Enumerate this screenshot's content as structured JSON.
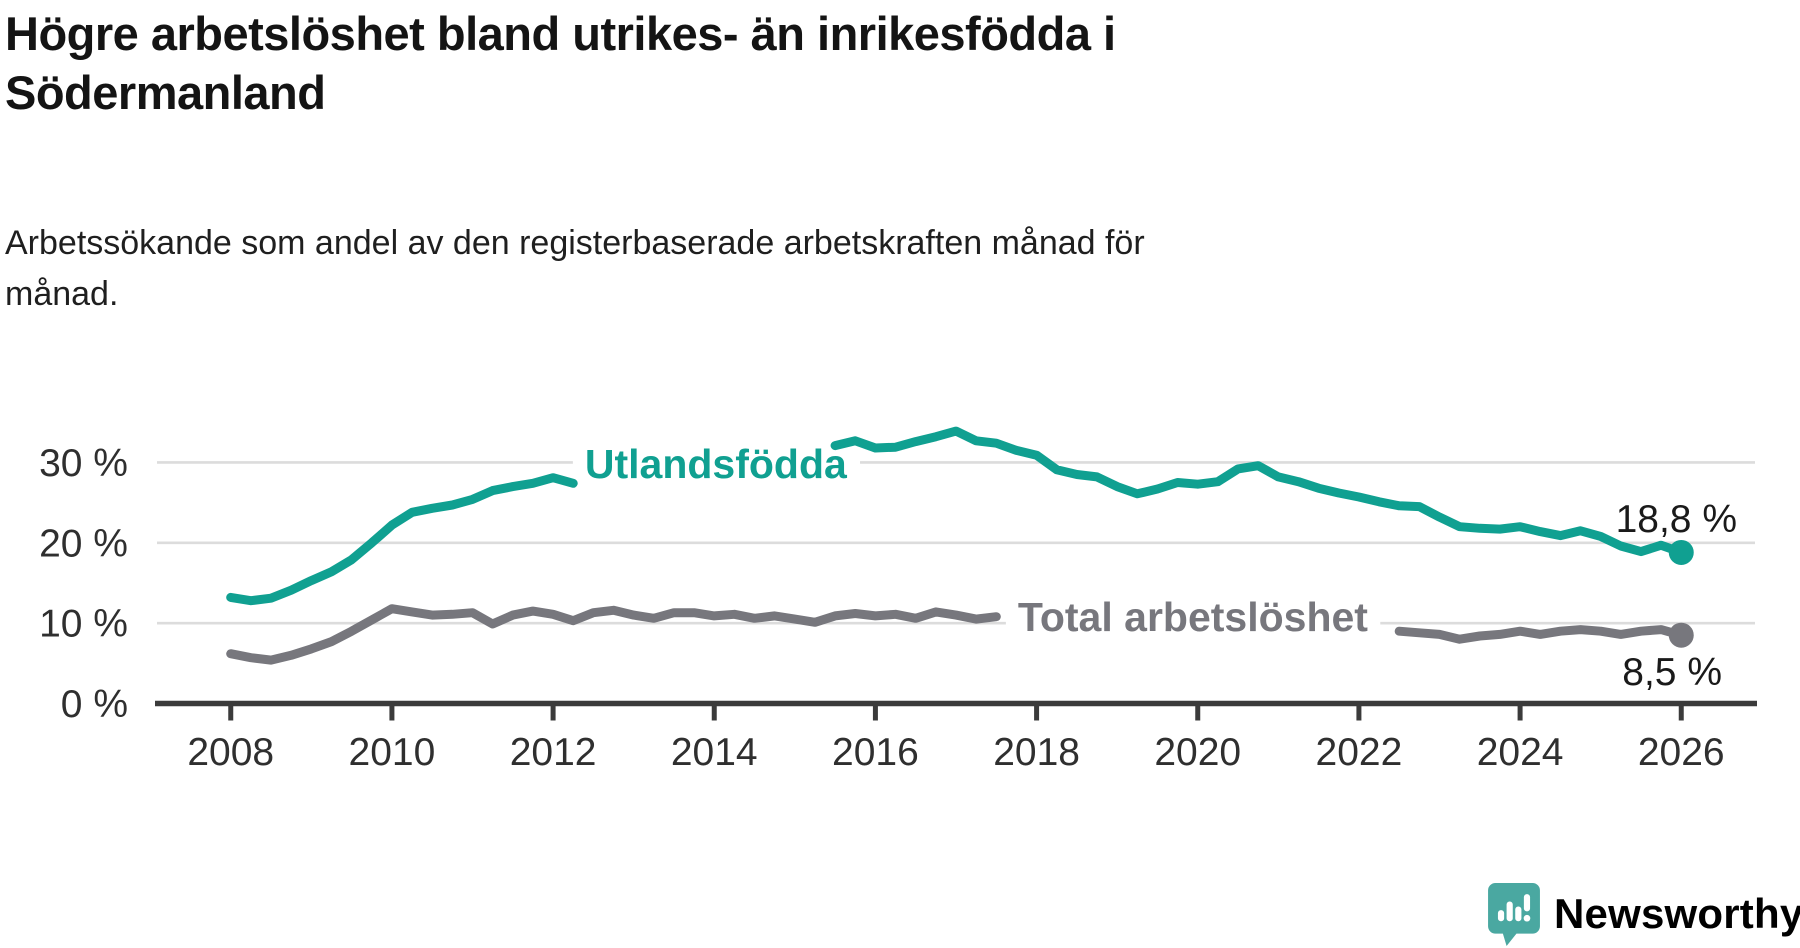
{
  "header": {
    "title_lines": {
      "0": "Högre arbetslöshet bland utrikes- än inrikesfödda i",
      "1": "Södermanland"
    },
    "subtitle_lines": {
      "0": "Arbetssökande som andel av den registerbaserade arbetskraften månad för",
      "1": "månad."
    }
  },
  "chart_data": {
    "type": "line",
    "x_unit": "year",
    "y_unit": "percent",
    "grid": true,
    "legend": "inline-labels-on-lines",
    "xlim": [
      2007.06,
      2026.94
    ],
    "ylim": [
      0,
      37.4
    ],
    "x_ticks": [
      2008,
      2010,
      2012,
      2014,
      2016,
      2018,
      2020,
      2022,
      2024,
      2026
    ],
    "y_ticks": [
      0,
      10,
      20,
      30
    ],
    "y_tick_suffix": " %",
    "x": [
      2008.0,
      2008.25,
      2008.5,
      2008.75,
      2009.0,
      2009.25,
      2009.5,
      2009.75,
      2010.0,
      2010.25,
      2010.5,
      2010.75,
      2011.0,
      2011.25,
      2011.5,
      2011.75,
      2012.0,
      2012.25,
      2012.5,
      2012.75,
      2013.0,
      2013.25,
      2013.5,
      2013.75,
      2014.0,
      2014.25,
      2014.5,
      2014.75,
      2015.0,
      2015.25,
      2015.5,
      2015.75,
      2016.0,
      2016.25,
      2016.5,
      2016.75,
      2017.0,
      2017.25,
      2017.5,
      2017.75,
      2018.0,
      2018.25,
      2018.5,
      2018.75,
      2019.0,
      2019.25,
      2019.5,
      2019.75,
      2020.0,
      2020.25,
      2020.5,
      2020.75,
      2021.0,
      2021.25,
      2021.5,
      2021.75,
      2022.0,
      2022.25,
      2022.5,
      2022.75,
      2023.0,
      2023.25,
      2023.5,
      2023.75,
      2024.0,
      2024.25,
      2024.5,
      2024.75,
      2025.0,
      2025.25,
      2025.5,
      2025.75,
      2026.0
    ],
    "series": [
      {
        "name": "Utlandsfödda",
        "color": "#10a091",
        "inline_label": {
          "x": 2014.02,
          "y": 29.8
        },
        "end_label": "18,8 %",
        "end_value": 18.8,
        "values": [
          13.2,
          12.8,
          13.1,
          14.1,
          15.3,
          16.4,
          17.9,
          20.0,
          22.2,
          23.8,
          24.3,
          24.7,
          25.4,
          26.5,
          27.0,
          27.4,
          28.1,
          27.4,
          null,
          null,
          null,
          null,
          null,
          null,
          null,
          null,
          null,
          null,
          null,
          null,
          32.1,
          32.7,
          31.8,
          31.9,
          32.6,
          33.2,
          33.9,
          32.7,
          32.4,
          31.5,
          30.9,
          29.1,
          28.5,
          28.2,
          27.0,
          26.1,
          26.7,
          27.5,
          27.3,
          27.6,
          29.2,
          29.6,
          28.2,
          27.6,
          26.8,
          26.2,
          25.7,
          25.1,
          24.6,
          24.5,
          23.2,
          22.0,
          21.8,
          21.7,
          22.0,
          21.4,
          20.9,
          21.5,
          20.8,
          19.6,
          18.9,
          19.7,
          18.8
        ]
      },
      {
        "name": "Total arbetslöshet",
        "color": "#77777d",
        "inline_label": {
          "x": 2019.94,
          "y": 10.77
        },
        "end_label": "8,5 %",
        "end_value": 8.5,
        "values": [
          6.2,
          5.7,
          5.4,
          6.0,
          6.8,
          7.7,
          9.0,
          10.4,
          11.8,
          11.4,
          11.0,
          11.1,
          11.3,
          9.9,
          11.0,
          11.5,
          11.1,
          10.3,
          11.3,
          11.6,
          11.0,
          10.6,
          11.3,
          11.3,
          10.9,
          11.1,
          10.6,
          10.9,
          10.5,
          10.1,
          10.9,
          11.2,
          10.9,
          11.1,
          10.6,
          11.4,
          11.0,
          10.5,
          10.8,
          null,
          null,
          null,
          null,
          null,
          null,
          null,
          null,
          null,
          null,
          null,
          null,
          null,
          null,
          null,
          null,
          null,
          null,
          null,
          9.0,
          8.8,
          8.6,
          8.0,
          8.4,
          8.6,
          9.0,
          8.6,
          9.0,
          9.2,
          9.0,
          8.6,
          9.0,
          9.2,
          8.5
        ]
      }
    ],
    "title": "Högre arbetslöshet bland utrikes- än inrikesfödda i Södermanland",
    "subtitle": "Arbetssökande som andel av den registerbaserade arbetskraften månad för månad."
  },
  "colors": {
    "accent_teal": "#10a091",
    "series_gray": "#77777d",
    "axis": "#3b3b3b",
    "grid": "#dcdcdc",
    "tick_text": "#2f2f2f",
    "logo_teal": "#4aa8a1"
  },
  "logo": {
    "text": "Newsworthy",
    "icon": "newsworthy-bubble-chart-icon"
  }
}
